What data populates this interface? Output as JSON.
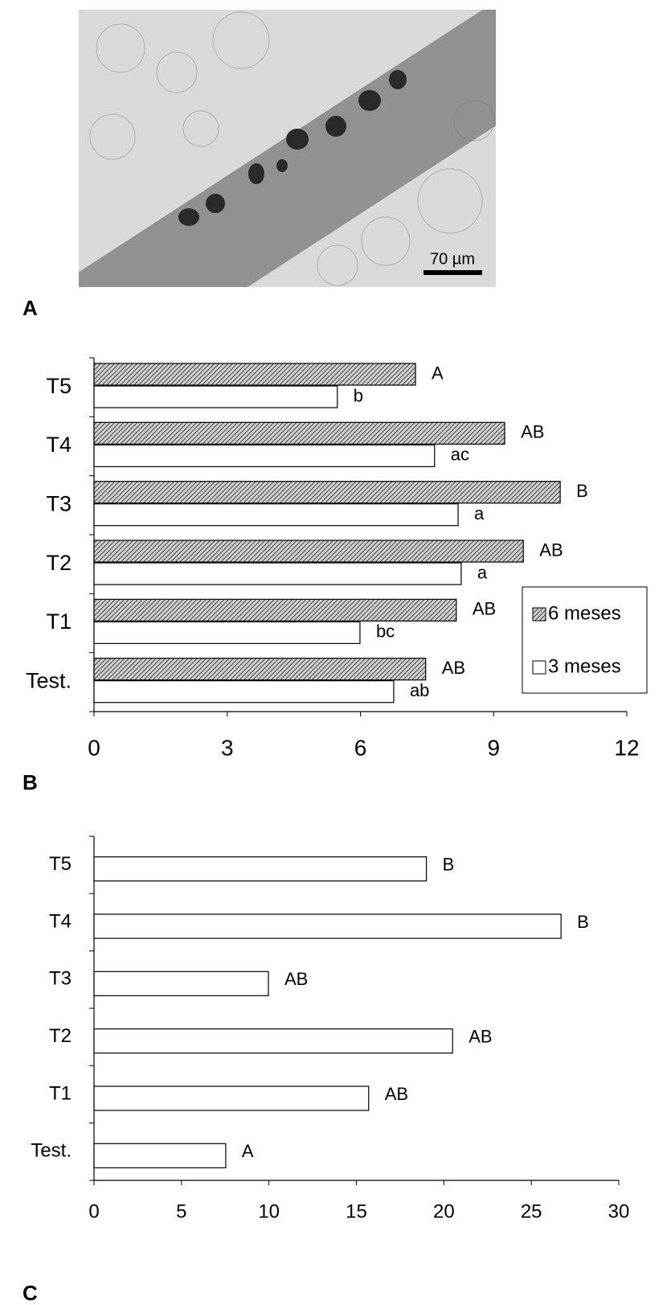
{
  "figure": {
    "panel_labels": [
      "A",
      "B",
      "C"
    ],
    "scale_bar_label": "70 µm"
  },
  "chart_data": [
    {
      "type": "bar",
      "orientation": "horizontal",
      "categories": [
        "Test.",
        "T1",
        "T2",
        "T3",
        "T4",
        "T5"
      ],
      "series": [
        {
          "name": "6 meses",
          "color": "#5a5a5a",
          "hatch": true,
          "values": [
            7.47,
            8.16,
            9.67,
            10.5,
            9.25,
            7.24
          ],
          "annotations": [
            "AB",
            "AB",
            "AB",
            "B",
            "AB",
            "A"
          ]
        },
        {
          "name": "3 meses",
          "color": "#ffffff",
          "hatch": false,
          "values": [
            6.75,
            5.99,
            8.27,
            8.2,
            7.67,
            5.48
          ],
          "annotations": [
            "ab",
            "bc",
            "a",
            "a",
            "ac",
            "b"
          ]
        }
      ],
      "xlim": [
        0,
        12
      ],
      "xticks": [
        0,
        3,
        6,
        9,
        12
      ],
      "legend": "right",
      "grid": false
    },
    {
      "type": "bar",
      "orientation": "horizontal",
      "categories": [
        "Test.",
        "T1",
        "T2",
        "T3",
        "T4",
        "T5"
      ],
      "series": [
        {
          "color": "#ffffff",
          "hatch": false,
          "values": [
            7.53,
            15.7,
            20.5,
            9.97,
            26.7,
            19.0
          ],
          "annotations": [
            "A",
            "AB",
            "AB",
            "AB",
            "B",
            "B"
          ]
        }
      ],
      "xlim": [
        0,
        30
      ],
      "xticks": [
        0,
        5,
        10,
        15,
        20,
        25,
        30
      ],
      "grid": false
    }
  ]
}
